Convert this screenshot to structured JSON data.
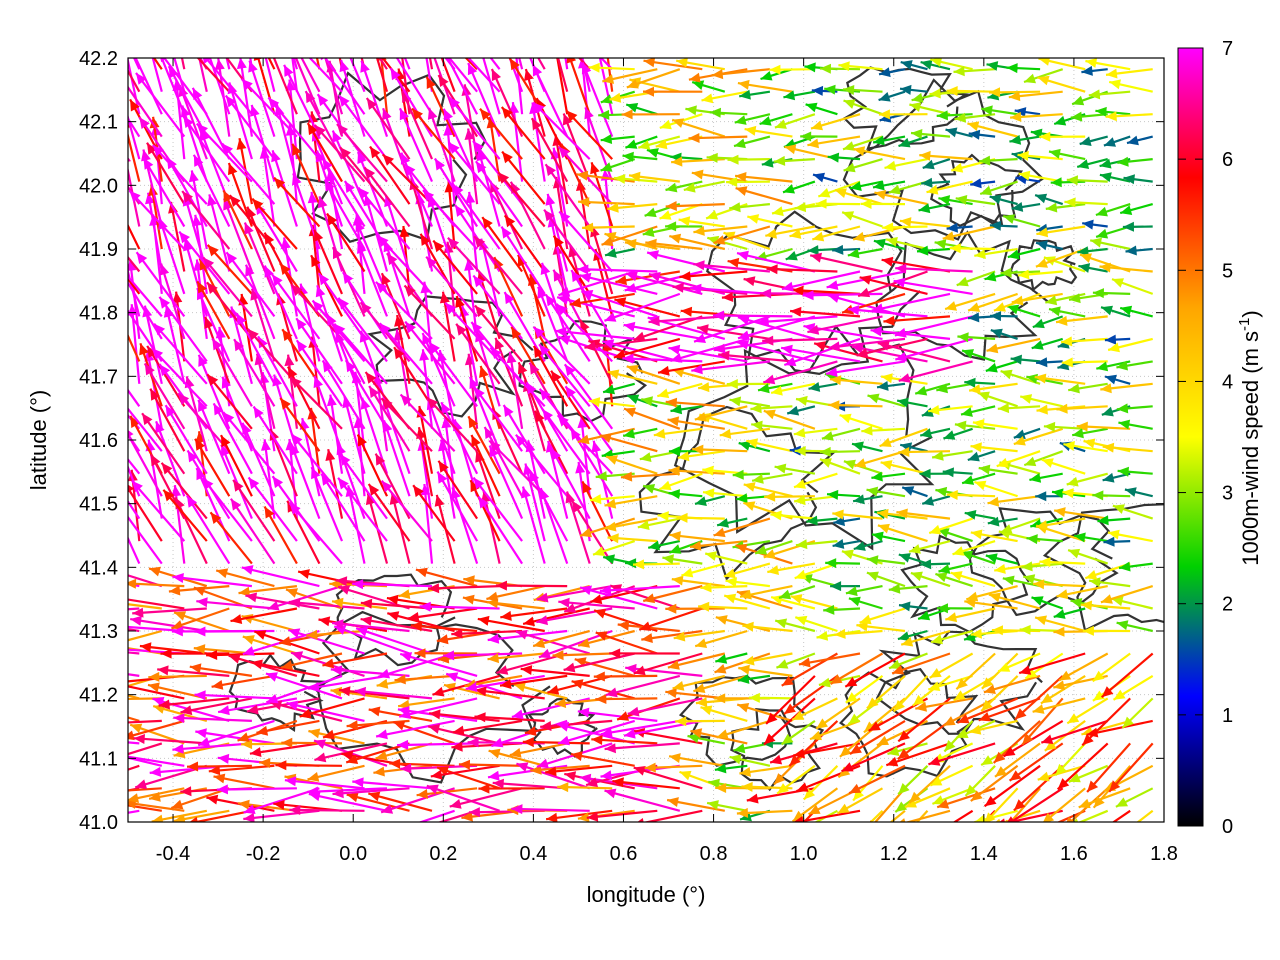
{
  "chart_data": {
    "type": "vector-field",
    "xlabel": "longitude (°)",
    "ylabel": "latitude (°)",
    "xlim": [
      -0.5,
      1.8
    ],
    "ylim": [
      41.0,
      42.2
    ],
    "x_ticks": [
      "-0.4",
      "-0.2",
      "0.0",
      "0.2",
      "0.4",
      "0.6",
      "0.8",
      "1.0",
      "1.2",
      "1.4",
      "1.6",
      "1.8"
    ],
    "x_tick_values": [
      -0.4,
      -0.2,
      0.0,
      0.2,
      0.4,
      0.6,
      0.8,
      1.0,
      1.2,
      1.4,
      1.6,
      1.8
    ],
    "y_ticks": [
      "41.0",
      "41.1",
      "41.2",
      "41.3",
      "41.4",
      "41.5",
      "41.6",
      "41.7",
      "41.8",
      "41.9",
      "42.0",
      "42.1",
      "42.2"
    ],
    "y_tick_values": [
      41.0,
      41.1,
      41.2,
      41.3,
      41.4,
      41.5,
      41.6,
      41.7,
      41.8,
      41.9,
      42.0,
      42.1,
      42.2
    ],
    "grid": true,
    "colorbar": {
      "label": "1000m-wind speed (m s-1)",
      "label_main": "1000m-wind speed (m s",
      "label_sup": "-1",
      "label_end": ")",
      "range": [
        0,
        7
      ],
      "ticks": [
        "0",
        "1",
        "2",
        "3",
        "4",
        "5",
        "6",
        "7"
      ],
      "tick_values": [
        0,
        1,
        2,
        3,
        4,
        5,
        6,
        7
      ],
      "colormap": [
        "#000000",
        "#0000ff",
        "#00d000",
        "#ffff00",
        "#ffa500",
        "#ff0000",
        "#ff00ff"
      ]
    },
    "vector_regions": [
      {
        "region": "north-west",
        "lon": [
          -0.5,
          0.6
        ],
        "lat": [
          41.4,
          42.2
        ],
        "speed": 7,
        "direction": "north-westward"
      },
      {
        "region": "central band",
        "lon": [
          0.4,
          1.4
        ],
        "lat": [
          41.7,
          41.9
        ],
        "speed": 7,
        "direction": "westward"
      },
      {
        "region": "south-west",
        "lon": [
          -0.5,
          0.8
        ],
        "lat": [
          41.0,
          41.4
        ],
        "speed": 6,
        "direction": "westward"
      },
      {
        "region": "east",
        "lon": [
          1.0,
          1.8
        ],
        "lat": [
          41.3,
          42.2
        ],
        "speed": 3,
        "direction": "westward"
      },
      {
        "region": "south-east",
        "lon": [
          1.0,
          1.8
        ],
        "lat": [
          41.0,
          41.3
        ],
        "speed": 4.5,
        "direction": "south-westward"
      }
    ]
  }
}
